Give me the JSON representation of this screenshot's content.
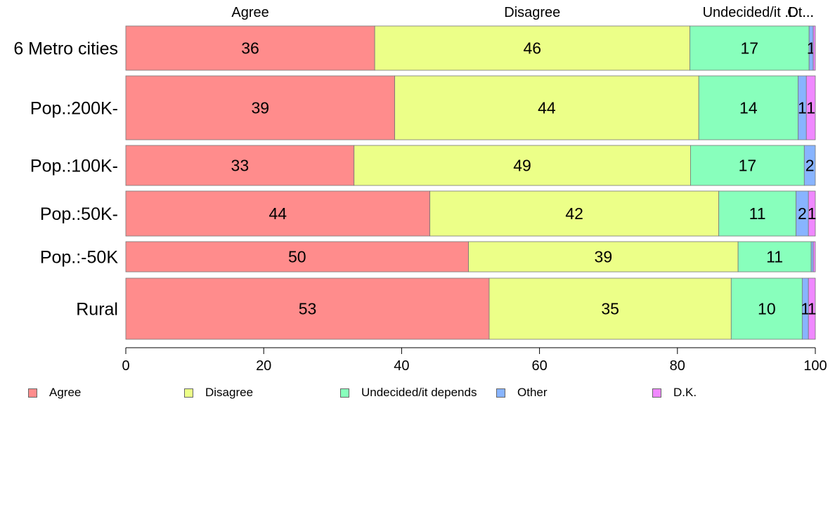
{
  "chart_data": {
    "type": "bar",
    "orientation": "horizontal",
    "stacked": true,
    "categories": [
      "6 Metro cities",
      "Pop.:200K-",
      "Pop.:100K-",
      "Pop.:50K-",
      "Pop.:-50K",
      "Rural"
    ],
    "series": [
      {
        "name": "Agree",
        "color": "#ff8c8c",
        "values": [
          36.1,
          39.0,
          33.1,
          44.1,
          49.7,
          52.7
        ],
        "labels": [
          "36",
          "39",
          "33",
          "44",
          "50",
          "53"
        ]
      },
      {
        "name": "Disagree",
        "color": "#ecff88",
        "values": [
          45.7,
          44.1,
          48.8,
          41.9,
          39.1,
          35.1
        ],
        "labels": [
          "46",
          "44",
          "49",
          "42",
          "39",
          "35"
        ]
      },
      {
        "name": "Undecided/it depends",
        "color": "#88ffbc",
        "values": [
          17.3,
          14.4,
          16.5,
          11.2,
          10.6,
          10.3
        ],
        "labels": [
          "17",
          "14",
          "17",
          "11",
          "11",
          "10"
        ]
      },
      {
        "name": "Other",
        "color": "#88b4ff",
        "values": [
          0.6,
          1.2,
          1.6,
          1.8,
          0.3,
          0.9
        ],
        "labels": [
          "1",
          "1",
          "2",
          "2",
          "",
          "1"
        ]
      },
      {
        "name": "D.K.",
        "color": "#f088ff",
        "values": [
          0.3,
          1.3,
          0.0,
          1.0,
          0.3,
          1.0
        ],
        "labels": [
          "",
          "1",
          "",
          "1",
          "",
          "1"
        ]
      }
    ],
    "top_labels": [
      "Agree",
      "Disagree",
      "Undecided/it ...",
      "Ot...",
      "D...."
    ],
    "xlim": [
      0,
      100
    ],
    "xticks": [
      "0",
      "20",
      "40",
      "60",
      "80",
      "100"
    ],
    "legend_position": "bottom",
    "grid": false
  }
}
